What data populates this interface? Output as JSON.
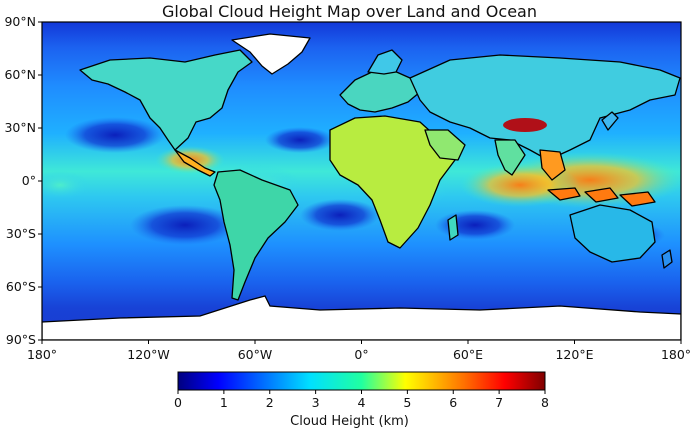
{
  "title": "Global Cloud Height Map over Land and Ocean",
  "lat_ticks": [
    "90°N",
    "60°N",
    "30°N",
    "0°",
    "30°S",
    "60°S",
    "90°S"
  ],
  "lon_ticks": [
    "180°",
    "120°W",
    "60°W",
    "0°",
    "60°E",
    "120°E",
    "180°"
  ],
  "colorbar": {
    "label": "Cloud Height (km)",
    "ticks": [
      "0",
      "1",
      "2",
      "3",
      "4",
      "5",
      "6",
      "7",
      "8"
    ],
    "range": [
      0,
      8
    ],
    "colormap": "jet",
    "stops": [
      "#00007f",
      "#0000ff",
      "#0080ff",
      "#00ffff",
      "#80ff80",
      "#ffff00",
      "#ff8000",
      "#ff0000",
      "#7f0000"
    ]
  },
  "colors": {
    "ocean_base": "#1f7dff",
    "southern_ocean": "#1646d8",
    "stratocumulus": "#0e28c8",
    "itcz": "#3df0d8",
    "convective": "#ff8a1a",
    "tibet": "#c8141a",
    "ice": "#ffffff",
    "coast": "#000000"
  }
}
